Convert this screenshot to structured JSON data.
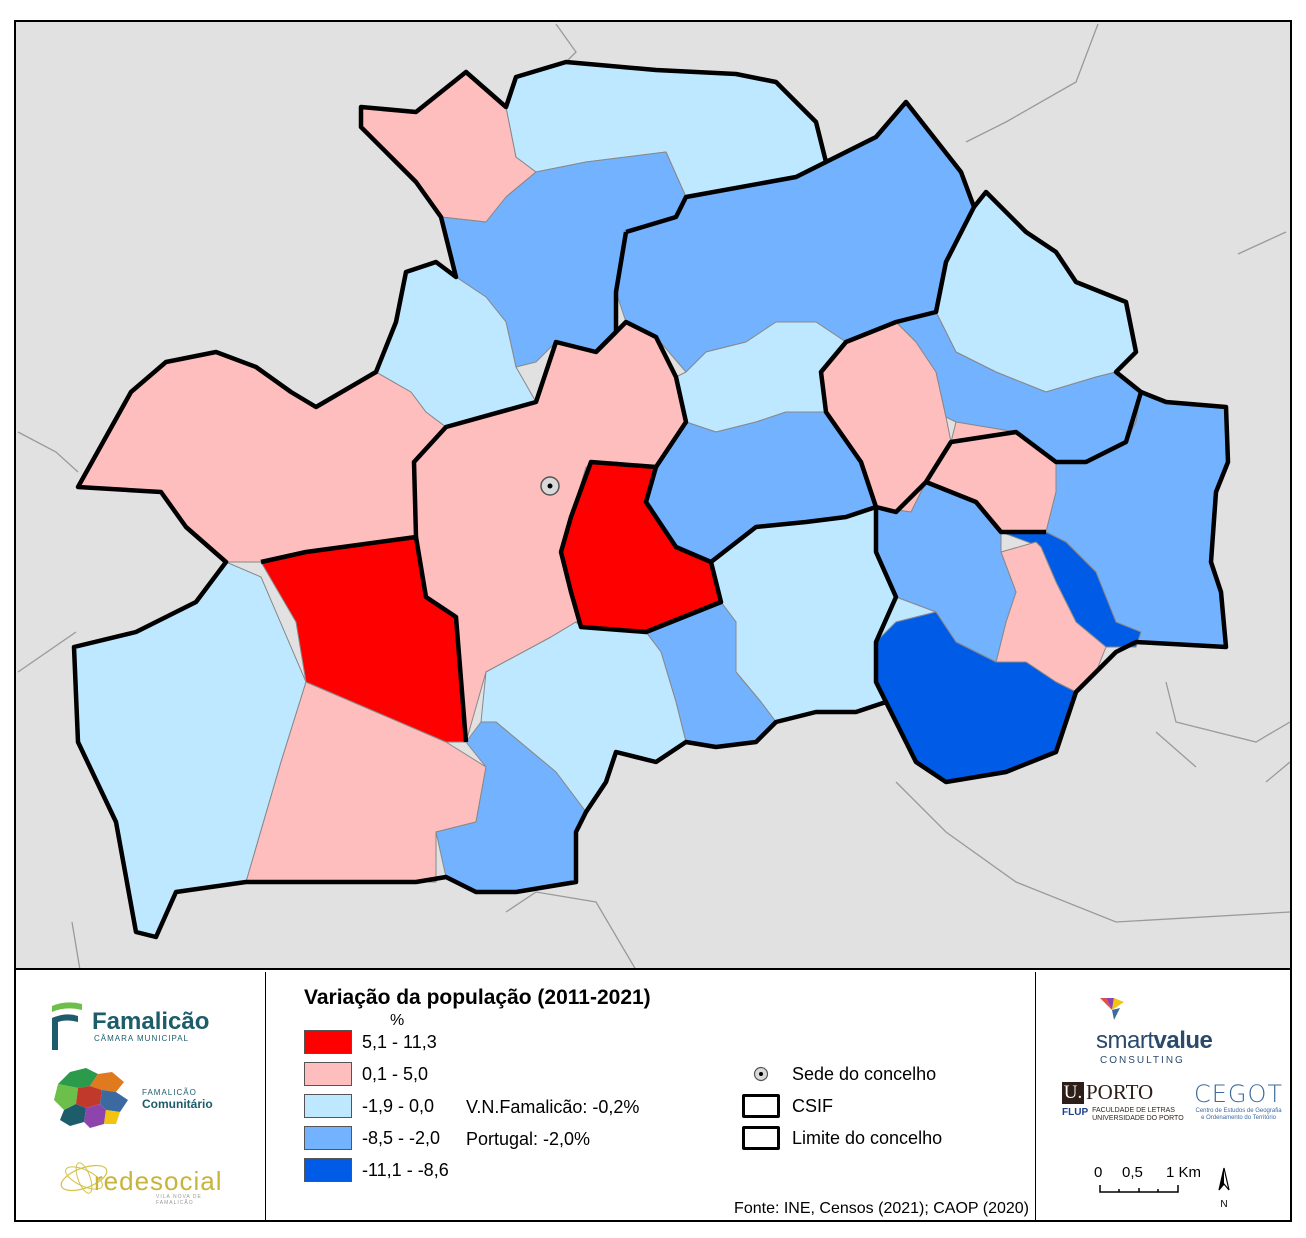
{
  "legend": {
    "title": "Variação da população (2011-2021)",
    "unit": "%",
    "classes": [
      {
        "label": "5,1 - 11,3",
        "color": "#ff0000"
      },
      {
        "label": "0,1 - 5,0",
        "color": "#ffbebe"
      },
      {
        "label": "-1,9 - 0,0",
        "color": "#bee8ff"
      },
      {
        "label": "-8,5 - -2,0",
        "color": "#73b2ff"
      },
      {
        "label": "-11,1 - -8,6",
        "color": "#005ce6"
      }
    ],
    "notes": {
      "vnf": "V.N.Famalicão: -0,2%",
      "portugal": "Portugal: -2,0%"
    },
    "symbols": {
      "seat": "Sede do concelho",
      "csif": "CSIF",
      "boundary": "Limite do concelho"
    },
    "source": "Fonte: INE, Censos (2021); CAOP (2020)"
  },
  "logos": {
    "famalicao": {
      "name": "Famalicão",
      "sub": "CÂMARA MUNICIPAL"
    },
    "comunitario": {
      "top": "FAMALICÃO",
      "name": "Comunitário"
    },
    "redesocial": {
      "name": "redesocial",
      "sub": "VILA NOVA DE FAMALICÃO"
    },
    "smartvalue": {
      "name_a": "smart",
      "name_b": "value",
      "sub": "CONSULTING"
    },
    "uporto": {
      "u": "U.",
      "porto": "PORTO",
      "flup": "FLUP",
      "line1": "FACULDADE DE LETRAS",
      "line2": "UNIVERSIDADE DO PORTO"
    },
    "cegot": {
      "name": "CEGOT",
      "line1": "Centro de Estudos de Geografia",
      "line2": "e Ordenamento do Território"
    }
  },
  "scale": {
    "labels": [
      "0",
      "0,5",
      "1 Km"
    ]
  },
  "north": {
    "label": "N"
  },
  "colors": {
    "background": "#e1e1e1",
    "high": "#ff0000",
    "positive": "#ffbebe",
    "slight_negative": "#bee8ff",
    "negative": "#73b2ff",
    "strong_negative": "#005ce6"
  }
}
